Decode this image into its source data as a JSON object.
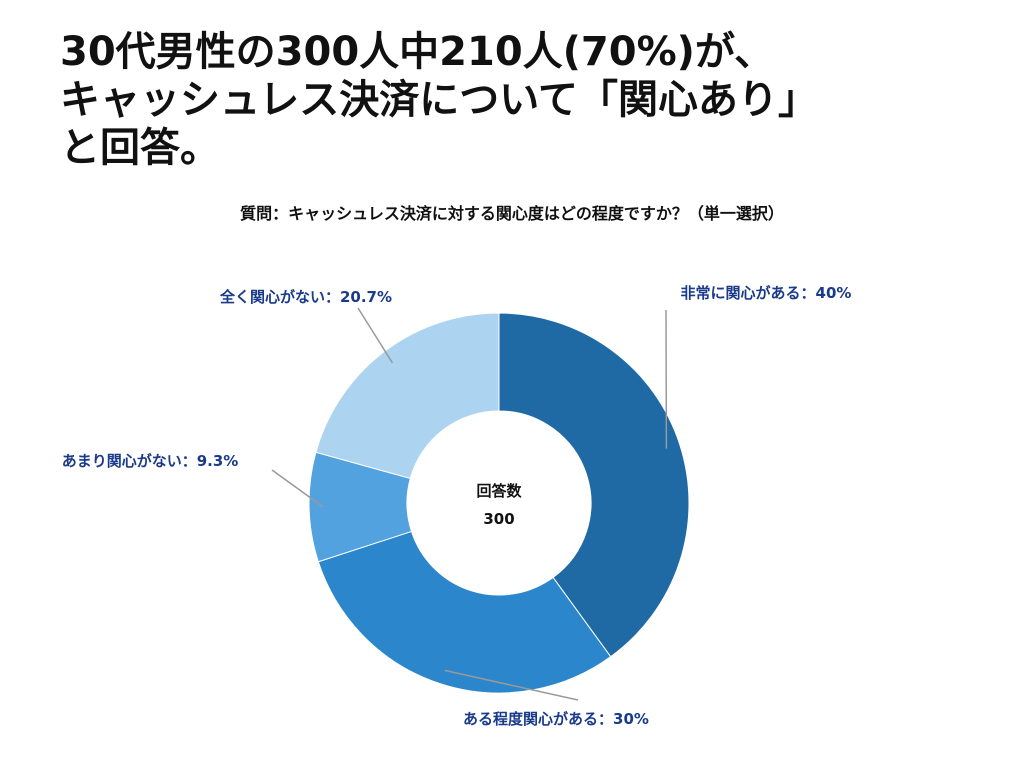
{
  "headline": {
    "line1": "30代男性の300人中210人(70%)が、",
    "line2": "キャッシュレス決済について「関心あり」",
    "line3": "と回答。"
  },
  "question": "質問：キャッシュレス決済に対する関心度はどの程度ですか？（単一選択）",
  "chart_data": {
    "type": "pie",
    "donut": true,
    "center_label": "回答数",
    "center_value": "300",
    "slices": [
      {
        "label": "非常に関心がある",
        "value": 40,
        "display": "非常に関心がある：40%",
        "color": "#1f6aa5"
      },
      {
        "label": "ある程度関心がある",
        "value": 30,
        "display": "ある程度関心がある：30%",
        "color": "#2b86cc"
      },
      {
        "label": "あまり関心がない",
        "value": 9.3,
        "display": "あまり関心がない：9.3%",
        "color": "#52a2e0"
      },
      {
        "label": "全く関心がない",
        "value": 20.7,
        "display": "全く関心がない：20.7%",
        "color": "#acd4f0"
      }
    ],
    "label_color": "#1a3a8a",
    "leader_color": "#999999"
  }
}
